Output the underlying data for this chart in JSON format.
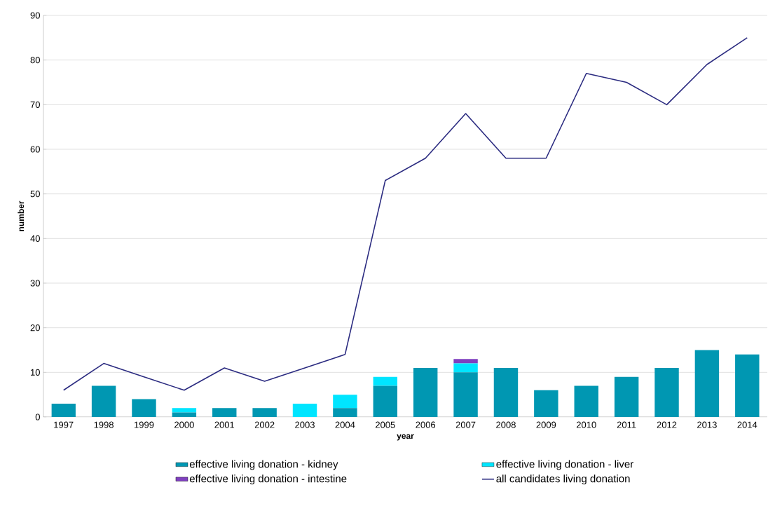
{
  "chart_data": {
    "type": "bar",
    "stacked": true,
    "xlabel": "year",
    "ylabel": "number",
    "categories": [
      "1997",
      "1998",
      "1999",
      "2000",
      "2001",
      "2002",
      "2003",
      "2004",
      "2005",
      "2006",
      "2007",
      "2008",
      "2009",
      "2010",
      "2011",
      "2012",
      "2013",
      "2014"
    ],
    "series": [
      {
        "name": "effective living donation - kidney",
        "color": "#0097b2",
        "values": [
          3,
          7,
          4,
          1,
          2,
          2,
          0,
          2,
          7,
          11,
          10,
          11,
          6,
          7,
          9,
          11,
          15,
          14
        ]
      },
      {
        "name": "effective living donation - liver",
        "color": "#00e5ff",
        "values": [
          0,
          0,
          0,
          1,
          0,
          0,
          3,
          3,
          2,
          0,
          2,
          0,
          0,
          0,
          0,
          0,
          0,
          0
        ]
      },
      {
        "name": "effective living donation - intestine",
        "color": "#7f3fbf",
        "values": [
          0,
          0,
          0,
          0,
          0,
          0,
          0,
          0,
          0,
          0,
          1,
          0,
          0,
          0,
          0,
          0,
          0,
          0
        ]
      },
      {
        "name": "all candidates living donation",
        "type": "line",
        "color": "#2b2b80",
        "values": [
          6,
          12,
          9,
          6,
          11,
          8,
          11,
          14,
          53,
          58,
          68,
          58,
          58,
          77,
          75,
          70,
          79,
          85
        ]
      }
    ],
    "ylim": [
      0,
      90
    ],
    "yticks": [
      0,
      10,
      20,
      30,
      40,
      50,
      60,
      70,
      80,
      90
    ],
    "grid": "y",
    "legend": "bottom"
  }
}
